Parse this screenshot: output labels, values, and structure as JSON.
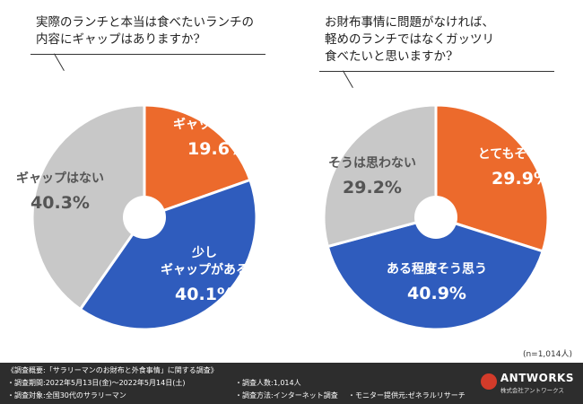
{
  "chart_data": [
    {
      "type": "pie",
      "title": "実際のランチと本当は食べたいランチの\n内容にギャップはありますか?",
      "slices": [
        {
          "label": "大きな\nギャップがある",
          "value": 19.6,
          "display": "19.6%",
          "color": "#ec6a2c"
        },
        {
          "label": "少し\nギャップがある",
          "value": 40.1,
          "display": "40.1%",
          "color": "#2f5cbd"
        },
        {
          "label": "ギャップはない",
          "value": 40.3,
          "display": "40.3%",
          "color": "#c8c8c8"
        }
      ]
    },
    {
      "type": "pie",
      "title": "お財布事情に問題がなければ、\n軽めのランチではなくガッツリ\n食べたいと思いますか?",
      "slices": [
        {
          "label": "とてもそう思う",
          "value": 29.9,
          "display": "29.9%",
          "color": "#ec6a2c"
        },
        {
          "label": "ある程度そう思う",
          "value": 40.9,
          "display": "40.9%",
          "color": "#2f5cbd"
        },
        {
          "label": "そうは思わない",
          "value": 29.2,
          "display": "29.2%",
          "color": "#c8c8c8"
        }
      ]
    }
  ],
  "sample_size": "(n=1,014人)",
  "footer": {
    "heading": "《調査概要:「サラリーマンのお財布と外食事情」に関する調査》",
    "period": "・調査期間:2022年5月13日(金)〜2022年5月14日(土)",
    "target": "・調査対象:全国30代のサラリーマン",
    "count": "・調査人数:1,014人",
    "method": "・調査方法:インターネット調査",
    "provider": "・モニター提供元:ゼネラルリサーチ",
    "brand_name": "ANTWORKS",
    "brand_sub": "株式会社アントワークス"
  }
}
